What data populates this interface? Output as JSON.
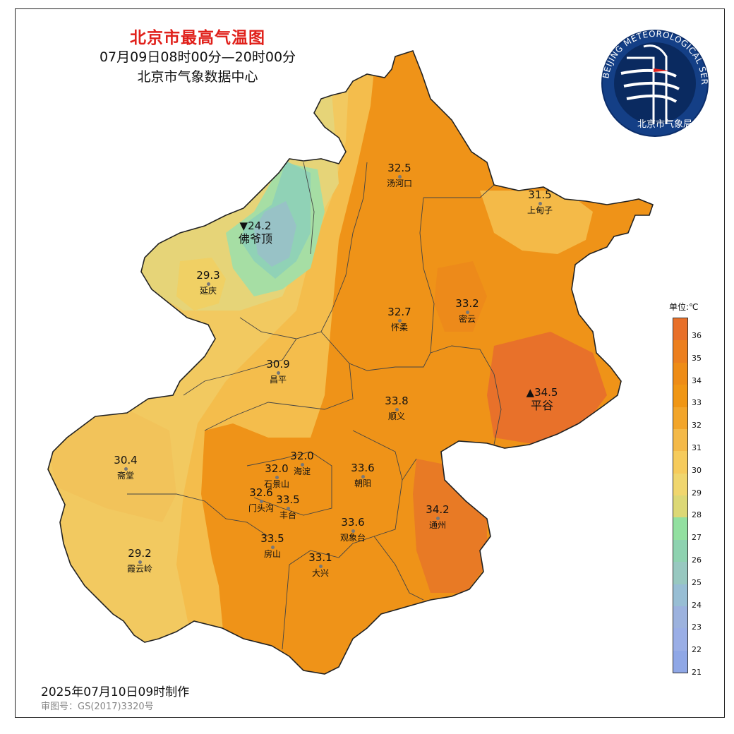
{
  "title": {
    "main": "北京市最高气温图",
    "period": "07月09日08时00分—20时00分",
    "source": "北京市气象数据中心"
  },
  "logo": {
    "ring_text": "BEIJING METEOROLOGICAL SERVICE",
    "agency": "北京市气象局"
  },
  "stations": [
    {
      "name": "汤河口",
      "value": "32.5"
    },
    {
      "name": "上甸子",
      "value": "31.5"
    },
    {
      "name": "佛爷顶",
      "value": "▼24.2",
      "marker": "min"
    },
    {
      "name": "延庆",
      "value": "29.3"
    },
    {
      "name": "怀柔",
      "value": "32.7"
    },
    {
      "name": "密云",
      "value": "33.2"
    },
    {
      "name": "昌平",
      "value": "30.9"
    },
    {
      "name": "平谷",
      "value": "▲34.5",
      "marker": "max"
    },
    {
      "name": "顺义",
      "value": "33.8"
    },
    {
      "name": "斋堂",
      "value": "30.4"
    },
    {
      "name": "海淀",
      "value": "32.0"
    },
    {
      "name": "石景山",
      "value": "32.0"
    },
    {
      "name": "朝阳",
      "value": "33.6"
    },
    {
      "name": "门头沟",
      "value": "32.6"
    },
    {
      "name": "丰台",
      "value": "33.5"
    },
    {
      "name": "通州",
      "value": "34.2"
    },
    {
      "name": "观象台",
      "value": "33.6"
    },
    {
      "name": "房山",
      "value": "33.5"
    },
    {
      "name": "大兴",
      "value": "33.1"
    },
    {
      "name": "霞云岭",
      "value": "29.2"
    }
  ],
  "legend": {
    "unit": "单位:℃",
    "ticks": [
      "36",
      "35",
      "34",
      "33",
      "32",
      "31",
      "30",
      "29",
      "28",
      "27",
      "26",
      "25",
      "24",
      "23",
      "22",
      "21"
    ],
    "colors": [
      "#e8702a",
      "#ec7f1e",
      "#ee8c16",
      "#f09614",
      "#f2a52a",
      "#f4b948",
      "#f6cb5c",
      "#f0d66e",
      "#dcd876",
      "#92e0a0",
      "#8ed2b0",
      "#98c8c0",
      "#98bed4",
      "#9cb2de",
      "#9aaee6",
      "#8fa7e6"
    ]
  },
  "footer": {
    "made": "2025年07月10日09时制作",
    "review": "审图号：GS(2017)3320号"
  }
}
